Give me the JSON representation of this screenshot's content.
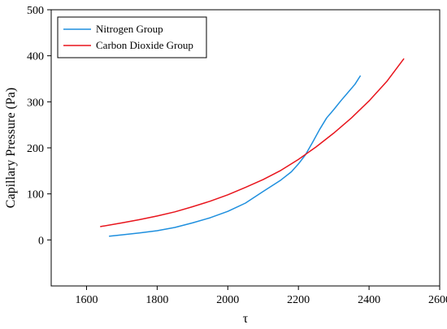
{
  "chart_data": {
    "type": "line",
    "title": "",
    "xlabel": "τ",
    "ylabel": "Capillary Pressure (Pa)",
    "xlim": [
      1500,
      2600
    ],
    "ylim": [
      -100,
      500
    ],
    "xticks": [
      1600,
      1800,
      2000,
      2200,
      2400,
      2600
    ],
    "yticks": [
      0,
      100,
      200,
      300,
      400,
      500
    ],
    "grid": false,
    "legend_position": "top-left",
    "series": [
      {
        "name": "Nitrogen Group",
        "color": "#1e8fde",
        "points": [
          [
            1665,
            8
          ],
          [
            1700,
            11
          ],
          [
            1750,
            15
          ],
          [
            1800,
            20
          ],
          [
            1850,
            27
          ],
          [
            1900,
            37
          ],
          [
            1950,
            48
          ],
          [
            2000,
            62
          ],
          [
            2050,
            80
          ],
          [
            2100,
            105
          ],
          [
            2150,
            130
          ],
          [
            2180,
            148
          ],
          [
            2200,
            165
          ],
          [
            2220,
            185
          ],
          [
            2240,
            212
          ],
          [
            2260,
            240
          ],
          [
            2280,
            265
          ],
          [
            2300,
            283
          ],
          [
            2320,
            302
          ],
          [
            2340,
            320
          ],
          [
            2360,
            338
          ],
          [
            2375,
            356
          ]
        ]
      },
      {
        "name": "Carbon Dioxide Group",
        "color": "#e8141c",
        "points": [
          [
            1640,
            29
          ],
          [
            1700,
            37
          ],
          [
            1750,
            44
          ],
          [
            1800,
            52
          ],
          [
            1850,
            61
          ],
          [
            1900,
            72
          ],
          [
            1950,
            84
          ],
          [
            2000,
            98
          ],
          [
            2050,
            114
          ],
          [
            2100,
            131
          ],
          [
            2150,
            151
          ],
          [
            2200,
            175
          ],
          [
            2250,
            202
          ],
          [
            2300,
            232
          ],
          [
            2350,
            265
          ],
          [
            2400,
            302
          ],
          [
            2450,
            344
          ],
          [
            2498,
            393
          ]
        ]
      }
    ]
  }
}
